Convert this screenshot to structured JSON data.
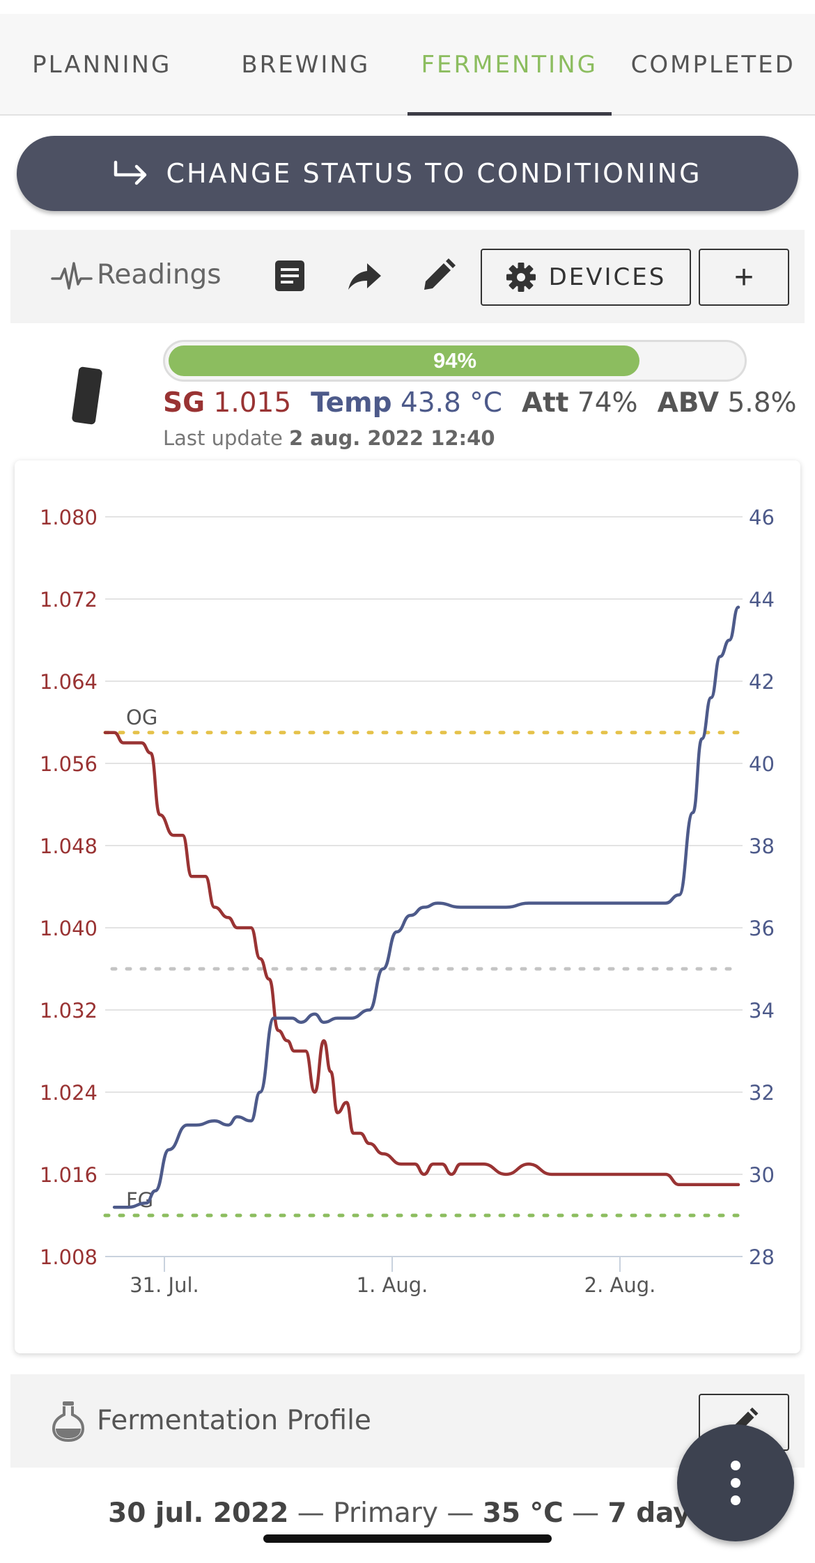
{
  "tabs": [
    {
      "label": "PLANNING",
      "active": false
    },
    {
      "label": "BREWING",
      "active": false
    },
    {
      "label": "FERMENTING",
      "active": true
    },
    {
      "label": "COMPLETED",
      "active": false
    }
  ],
  "status_button": {
    "label": "CHANGE STATUS TO CONDITIONING",
    "icon": "arrow-right-icon"
  },
  "toolbar": {
    "readings_label": "Readings",
    "icons": [
      "heartbeat-icon",
      "notes-icon",
      "share-icon",
      "edit-icon"
    ],
    "devices_label": "DEVICES",
    "add_label": "+"
  },
  "device": {
    "progress_label": "94%",
    "progress": 0.94,
    "sg_label": "SG",
    "sg_value": "1.015",
    "temp_label": "Temp",
    "temp_value": "43.8 °C",
    "att_label": "Att",
    "att_value": "74%",
    "abv_label": "ABV",
    "abv_value": "5.8%",
    "last_update_label": "Last update",
    "last_update_value": "2 aug. 2022 12:40"
  },
  "colors": {
    "sg": "#993333",
    "temp": "#4d5a8a",
    "og_line": "#e5c24a",
    "fg_line": "#8cbd5f",
    "target_line": "#c4c4c4",
    "accent": "#8cbd5f"
  },
  "chart_data": {
    "type": "line",
    "grid": true,
    "x_ticks": [
      "31. Jul.",
      "1. Aug.",
      "2. Aug."
    ],
    "y_left": {
      "ticks": [
        "1.080",
        "1.072",
        "1.064",
        "1.056",
        "1.048",
        "1.040",
        "1.032",
        "1.024",
        "1.016",
        "1.008"
      ],
      "range": [
        1.008,
        1.08
      ]
    },
    "y_right": {
      "ticks": [
        "46",
        "44",
        "42",
        "40",
        "38",
        "36",
        "34",
        "32",
        "30",
        "28"
      ],
      "range": [
        28,
        46
      ]
    },
    "reference_lines": [
      {
        "label": "OG",
        "value": 1.059,
        "axis": "left"
      },
      {
        "label": "FG",
        "value": 1.012,
        "axis": "left"
      },
      {
        "label": "",
        "value": 35,
        "axis": "right"
      }
    ],
    "series": [
      {
        "name": "SG",
        "axis": "left",
        "x": [
          -0.26,
          -0.22,
          -0.18,
          -0.1,
          -0.06,
          -0.02,
          0.04,
          0.08,
          0.12,
          0.18,
          0.22,
          0.28,
          0.32,
          0.38,
          0.42,
          0.46,
          0.5,
          0.54,
          0.57,
          0.62,
          0.66,
          0.7,
          0.73,
          0.76,
          0.8,
          0.83,
          0.86,
          0.9,
          0.96,
          1.04,
          1.1,
          1.14,
          1.18,
          1.22,
          1.26,
          1.3,
          1.4,
          1.5,
          1.6,
          1.7,
          1.8,
          1.9,
          2.0,
          2.1,
          2.2,
          2.26,
          2.34,
          2.52
        ],
        "values": [
          1.059,
          1.059,
          1.058,
          1.058,
          1.057,
          1.051,
          1.049,
          1.049,
          1.045,
          1.045,
          1.042,
          1.041,
          1.04,
          1.04,
          1.037,
          1.035,
          1.03,
          1.029,
          1.028,
          1.028,
          1.024,
          1.029,
          1.026,
          1.022,
          1.023,
          1.02,
          1.02,
          1.019,
          1.018,
          1.017,
          1.017,
          1.016,
          1.017,
          1.017,
          1.016,
          1.017,
          1.017,
          1.016,
          1.017,
          1.016,
          1.016,
          1.016,
          1.016,
          1.016,
          1.016,
          1.015,
          1.015,
          1.015
        ]
      },
      {
        "name": "Temp",
        "axis": "right",
        "x": [
          -0.22,
          -0.16,
          -0.08,
          -0.04,
          0.02,
          0.1,
          0.14,
          0.22,
          0.28,
          0.32,
          0.38,
          0.42,
          0.48,
          0.56,
          0.6,
          0.66,
          0.7,
          0.76,
          0.82,
          0.9,
          0.96,
          1.02,
          1.08,
          1.14,
          1.2,
          1.3,
          1.4,
          1.5,
          1.6,
          1.7,
          1.8,
          1.9,
          2.0,
          2.06,
          2.14,
          2.2,
          2.26,
          2.32,
          2.36,
          2.4,
          2.44,
          2.48,
          2.52
        ],
        "values": [
          29.2,
          29.2,
          29.3,
          29.6,
          30.6,
          31.2,
          31.2,
          31.3,
          31.2,
          31.4,
          31.3,
          32.0,
          33.8,
          33.8,
          33.7,
          33.9,
          33.7,
          33.8,
          33.8,
          34.0,
          35.0,
          35.9,
          36.3,
          36.5,
          36.6,
          36.5,
          36.5,
          36.5,
          36.6,
          36.6,
          36.6,
          36.6,
          36.6,
          36.6,
          36.6,
          36.6,
          36.8,
          38.8,
          40.6,
          41.6,
          42.6,
          43.0,
          43.8
        ]
      }
    ]
  },
  "profile": {
    "label": "Fermentation Profile",
    "date": "30 jul. 2022",
    "sep1": " — ",
    "stage": "Primary",
    "sep2": " — ",
    "temp": "35 °C",
    "sep3": " — ",
    "duration": "7 days"
  }
}
